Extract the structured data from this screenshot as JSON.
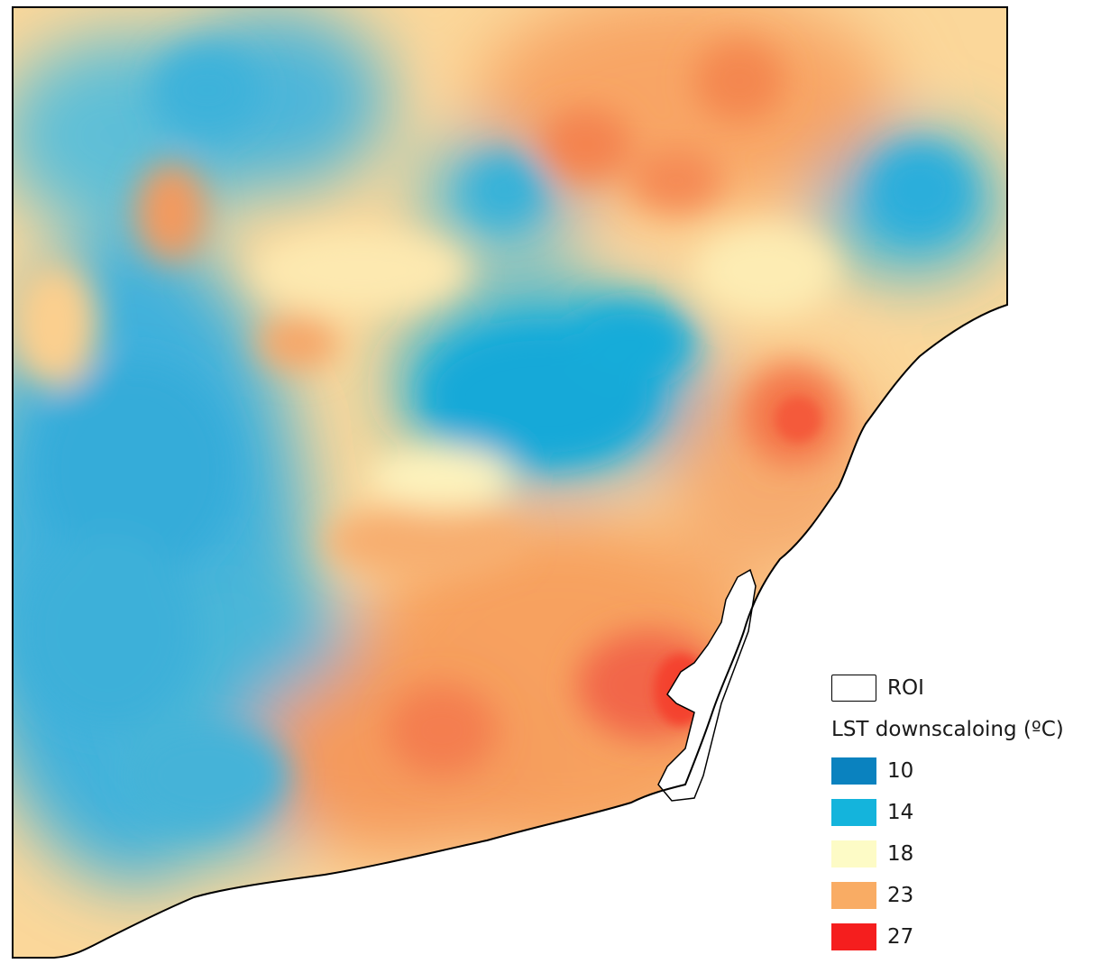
{
  "legend": {
    "roi_label": "ROI",
    "title": "LST downscaloing (ºC)",
    "classes": [
      {
        "label": "10",
        "color": "#0a82bf"
      },
      {
        "label": "14",
        "color": "#14b4dc"
      },
      {
        "label": "18",
        "color": "#fdfbc6"
      },
      {
        "label": "23",
        "color": "#f9ac64"
      },
      {
        "label": "27",
        "color": "#f51e1e"
      }
    ]
  }
}
